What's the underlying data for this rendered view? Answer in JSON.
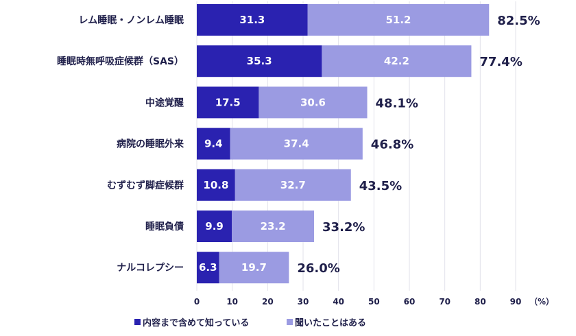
{
  "chart_data": {
    "type": "bar",
    "orientation": "horizontal",
    "stacked": true,
    "categories": [
      "レム睡眠・ノンレム睡眠",
      "睡眠時無呼吸症候群（SAS）",
      "中途覚醒",
      "病院の睡眠外来",
      "むずむず脚症候群",
      "睡眠負債",
      "ナルコレプシー"
    ],
    "series": [
      {
        "name": "内容まで含めて知っている",
        "color": "#2a22b0",
        "values": [
          31.3,
          35.3,
          17.5,
          9.4,
          10.8,
          9.9,
          6.3
        ]
      },
      {
        "name": "聞いたことはある",
        "color": "#9b9be2",
        "values": [
          51.2,
          42.2,
          30.6,
          37.4,
          32.7,
          23.2,
          19.7
        ]
      }
    ],
    "totals": [
      "82.5%",
      "77.4%",
      "48.1%",
      "46.8%",
      "43.5%",
      "33.2%",
      "26.0%"
    ],
    "xlim": [
      0,
      90
    ],
    "xticks": [
      0,
      10,
      20,
      30,
      40,
      50,
      60,
      70,
      80,
      90
    ],
    "xunit": "（%）",
    "grid": true,
    "legend_position": "bottom"
  }
}
